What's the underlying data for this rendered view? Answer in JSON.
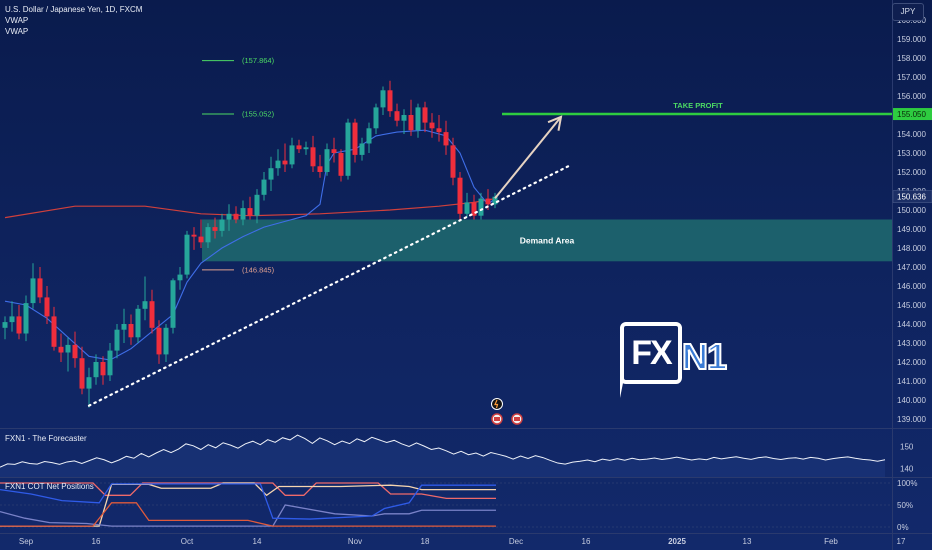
{
  "header": {
    "symbol_title": "U.S. Dollar / Japanese Yen, 1D, FXCM",
    "indicators": [
      "VWAP",
      "VWAP"
    ],
    "currency_button": "JPY"
  },
  "logo": {
    "left": "FX",
    "right": "N1"
  },
  "colors": {
    "bull": "#26a69a",
    "bear": "#ef2e3c",
    "take_profit": "#2ecc40",
    "demand_zone": "#1f6b6e",
    "trendline": "#ffffff",
    "arrow": "#e6d3c2",
    "vwap_blue": "#3f6ee8",
    "vwap_red": "#d0403c"
  },
  "chart_data": [
    {
      "type": "candlestick",
      "title": "U.S. Dollar / Japanese Yen, 1D, FXCM",
      "y_unit": "JPY",
      "ylim": [
        138.8,
        160.8
      ],
      "y_ticks": [
        "139.000",
        "140.000",
        "141.000",
        "142.000",
        "143.000",
        "144.000",
        "145.000",
        "146.000",
        "147.000",
        "148.000",
        "149.000",
        "150.000",
        "151.000",
        "152.000",
        "153.000",
        "154.000",
        "155.000",
        "156.000",
        "157.000",
        "158.000",
        "159.000",
        "160.000"
      ],
      "x_labels": [
        "Sep",
        "16",
        "Oct",
        "14",
        "Nov",
        "18",
        "Dec",
        "16",
        "2025",
        "13",
        "Feb",
        "17"
      ],
      "x_label_day_index": [
        3,
        13,
        26,
        36,
        50,
        60,
        73,
        83,
        96,
        106,
        118,
        128
      ],
      "candles": [
        [
          143.8,
          144.4,
          143.2,
          144.1
        ],
        [
          144.1,
          145.2,
          143.6,
          144.4
        ],
        [
          144.4,
          145.0,
          143.2,
          143.5
        ],
        [
          143.5,
          145.5,
          143.1,
          145.1
        ],
        [
          145.1,
          147.2,
          144.8,
          146.4
        ],
        [
          146.4,
          147.0,
          145.1,
          145.4
        ],
        [
          145.4,
          146.0,
          144.0,
          144.4
        ],
        [
          144.4,
          144.9,
          142.6,
          142.8
        ],
        [
          142.8,
          143.5,
          142.0,
          142.5
        ],
        [
          142.5,
          143.3,
          141.5,
          142.9
        ],
        [
          142.9,
          143.6,
          141.7,
          142.2
        ],
        [
          142.2,
          142.8,
          140.3,
          140.6
        ],
        [
          140.6,
          141.7,
          139.6,
          141.2
        ],
        [
          141.2,
          142.4,
          140.8,
          142.0
        ],
        [
          142.0,
          142.3,
          140.8,
          141.3
        ],
        [
          141.3,
          143.0,
          141.0,
          142.6
        ],
        [
          142.6,
          144.0,
          142.2,
          143.7
        ],
        [
          143.7,
          144.8,
          143.0,
          144.0
        ],
        [
          144.0,
          144.5,
          142.9,
          143.3
        ],
        [
          143.3,
          145.0,
          143.0,
          144.8
        ],
        [
          144.8,
          146.5,
          144.2,
          145.2
        ],
        [
          145.2,
          145.8,
          143.5,
          143.8
        ],
        [
          143.8,
          144.2,
          141.9,
          142.4
        ],
        [
          142.4,
          144.0,
          142.0,
          143.8
        ],
        [
          143.8,
          146.4,
          143.5,
          146.3
        ],
        [
          146.3,
          147.0,
          145.8,
          146.6
        ],
        [
          146.6,
          148.9,
          146.4,
          148.7
        ],
        [
          148.7,
          149.1,
          147.9,
          148.6
        ],
        [
          148.6,
          149.5,
          148.0,
          148.3
        ],
        [
          148.3,
          149.3,
          148.0,
          149.1
        ],
        [
          149.1,
          149.6,
          148.5,
          148.9
        ],
        [
          148.9,
          149.8,
          148.6,
          149.5
        ],
        [
          149.5,
          150.3,
          148.9,
          149.8
        ],
        [
          149.8,
          150.2,
          149.3,
          149.5
        ],
        [
          149.5,
          150.5,
          149.2,
          150.1
        ],
        [
          150.1,
          150.7,
          149.5,
          149.7
        ],
        [
          149.7,
          151.1,
          149.3,
          150.8
        ],
        [
          150.8,
          152.0,
          150.5,
          151.6
        ],
        [
          151.6,
          152.8,
          151.0,
          152.2
        ],
        [
          152.2,
          153.2,
          151.8,
          152.6
        ],
        [
          152.6,
          153.5,
          152.0,
          152.4
        ],
        [
          152.4,
          153.8,
          152.2,
          153.4
        ],
        [
          153.4,
          153.7,
          153.0,
          153.2
        ],
        [
          153.2,
          153.6,
          152.9,
          153.3
        ],
        [
          153.3,
          153.9,
          152.0,
          152.3
        ],
        [
          152.3,
          152.9,
          151.7,
          152.0
        ],
        [
          152.0,
          153.5,
          151.8,
          153.2
        ],
        [
          153.2,
          153.8,
          152.5,
          153.0
        ],
        [
          153.0,
          153.2,
          151.5,
          151.8
        ],
        [
          151.8,
          154.8,
          151.6,
          154.6
        ],
        [
          154.6,
          154.8,
          152.5,
          152.9
        ],
        [
          152.9,
          153.8,
          152.6,
          153.5
        ],
        [
          153.5,
          154.6,
          153.0,
          154.3
        ],
        [
          154.3,
          155.6,
          154.0,
          155.4
        ],
        [
          155.4,
          156.5,
          155.0,
          156.3
        ],
        [
          156.3,
          156.8,
          154.9,
          155.2
        ],
        [
          155.2,
          155.6,
          154.4,
          154.7
        ],
        [
          154.7,
          155.3,
          154.0,
          155.0
        ],
        [
          155.0,
          155.8,
          153.9,
          154.2
        ],
        [
          154.2,
          155.6,
          153.8,
          155.4
        ],
        [
          155.4,
          155.7,
          154.1,
          154.6
        ],
        [
          154.6,
          155.1,
          153.8,
          154.3
        ],
        [
          154.3,
          155.0,
          153.6,
          154.1
        ],
        [
          154.1,
          154.7,
          152.9,
          153.4
        ],
        [
          153.4,
          153.8,
          151.3,
          151.7
        ],
        [
          151.7,
          152.0,
          149.5,
          149.8
        ],
        [
          149.8,
          150.9,
          149.6,
          150.4
        ],
        [
          150.4,
          150.8,
          149.5,
          149.7
        ],
        [
          149.7,
          150.9,
          149.5,
          150.6
        ],
        [
          150.6,
          151.1,
          150.0,
          150.3
        ],
        [
          150.3,
          150.9,
          150.1,
          150.7
        ]
      ],
      "vwap_blue": [
        [
          0,
          145.2
        ],
        [
          3,
          145.0
        ],
        [
          6,
          144.3
        ],
        [
          9,
          143.3
        ],
        [
          12,
          142.3
        ],
        [
          15,
          142.1
        ],
        [
          18,
          142.7
        ],
        [
          21,
          143.6
        ],
        [
          24,
          144.5
        ],
        [
          26,
          146.2
        ],
        [
          28,
          147.2
        ],
        [
          31,
          148.0
        ],
        [
          34,
          148.6
        ],
        [
          37,
          149.1
        ],
        [
          40,
          149.4
        ],
        [
          43,
          149.7
        ],
        [
          45,
          150.3
        ],
        [
          46,
          152.4
        ],
        [
          47,
          153.0
        ],
        [
          50,
          153.2
        ],
        [
          53,
          153.9
        ],
        [
          56,
          154.1
        ],
        [
          60,
          154.2
        ],
        [
          63,
          153.9
        ],
        [
          65,
          153.0
        ],
        [
          67,
          151.2
        ],
        [
          69,
          150.3
        ],
        [
          70,
          150.6
        ]
      ],
      "vwap_red": [
        [
          0,
          149.6
        ],
        [
          10,
          150.2
        ],
        [
          20,
          150.2
        ],
        [
          28,
          149.8
        ],
        [
          35,
          149.7
        ],
        [
          45,
          149.8
        ],
        [
          55,
          150.0
        ],
        [
          62,
          150.2
        ],
        [
          67,
          150.4
        ],
        [
          70,
          150.6
        ]
      ],
      "fib_levels": [
        {
          "label": "(157.864)",
          "price": 157.86,
          "color": "#4cd964"
        },
        {
          "label": "(155.052)",
          "price": 155.05,
          "color": "#4cd964"
        },
        {
          "label": "(146.845)",
          "price": 146.85,
          "color": "#e0a090"
        }
      ],
      "take_profit": {
        "label": "TAKE PROFIT",
        "price": 155.05,
        "badge": "155.050"
      },
      "demand_area": {
        "label": "Demand Area",
        "top": 149.5,
        "bottom": 147.3
      },
      "last_price": {
        "badge": "150.636",
        "price": 150.6
      },
      "trendline": {
        "from": [
          12,
          139.7
        ],
        "to": [
          81,
          152.4
        ]
      },
      "arrow": {
        "from": [
          68,
          150.3
        ],
        "to": [
          74,
          154.9
        ]
      }
    },
    {
      "type": "line",
      "title": "FXN1 - The Forecaster",
      "y_ticks": [
        "150",
        "140"
      ],
      "ylim": [
        136,
        158
      ],
      "series": [
        {
          "values": [
            140.5,
            142.0,
            141.8,
            143.0,
            142.2,
            141.9,
            143.1,
            142.6,
            141.8,
            142.9,
            143.4,
            142.2,
            143.5,
            144.8,
            143.9,
            142.5,
            143.8,
            145.5,
            144.6,
            146.8,
            145.2,
            147.0,
            148.6,
            147.2,
            148.8,
            151.2,
            150.3,
            148.6,
            150.8,
            149.4,
            151.7,
            150.6,
            149.2,
            151.2,
            152.4,
            150.8,
            153.1,
            151.9,
            154.0,
            153.0,
            155.2,
            153.6,
            151.4,
            153.9,
            152.6,
            150.8,
            152.5,
            151.3,
            153.5,
            152.2,
            154.2,
            153.0,
            151.8,
            152.8,
            151.2,
            150.0,
            151.6,
            150.2,
            148.6,
            149.3,
            148.0,
            146.5,
            147.8,
            146.2,
            147.0,
            145.6,
            147.2,
            146.4,
            145.5,
            144.2,
            145.6,
            144.5,
            145.8,
            144.9,
            143.6,
            142.4,
            141.9,
            142.8,
            143.2,
            143.8,
            143.0,
            144.2,
            143.6,
            144.4,
            143.7,
            144.6,
            143.9,
            144.2,
            144.7,
            144.0,
            144.5,
            145.1,
            144.4,
            143.8,
            144.3,
            143.9,
            145.0,
            144.3,
            144.8,
            145.3,
            144.6,
            144.1,
            144.9,
            145.2,
            144.5,
            144.0,
            144.6,
            144.8,
            144.2,
            145.0,
            144.6,
            143.8,
            144.4,
            144.9,
            145.2,
            144.6,
            144.1,
            143.8,
            143.2,
            143.9
          ]
        }
      ]
    },
    {
      "type": "line",
      "title": "FXN1 COT Net Positions",
      "ylim": [
        0,
        100
      ],
      "y_ticks": [
        "100%",
        "50%",
        "0%"
      ],
      "series": [
        {
          "color": "#ef6a6a",
          "values": [
            [
              0,
              100
            ],
            [
              15,
              100
            ],
            [
              17,
              72
            ],
            [
              21,
              72
            ],
            [
              23,
              100
            ],
            [
              40,
              100
            ],
            [
              44,
              100
            ],
            [
              46,
              72
            ],
            [
              49,
              72
            ],
            [
              51,
              100
            ],
            [
              61,
              100
            ],
            [
              63,
              75
            ],
            [
              66,
              75
            ],
            [
              68,
              75
            ],
            [
              72,
              65
            ],
            [
              80,
              65
            ]
          ]
        },
        {
          "color": "#f5d5b0",
          "values": [
            [
              0,
              2
            ],
            [
              16,
              2
            ],
            [
              18,
              97
            ],
            [
              24,
              97
            ],
            [
              26,
              88
            ],
            [
              34,
              88
            ],
            [
              36,
              100
            ],
            [
              41,
              100
            ],
            [
              43,
              72
            ],
            [
              45,
              92
            ],
            [
              55,
              92
            ],
            [
              60,
              94
            ],
            [
              63,
              95
            ],
            [
              66,
              92
            ],
            [
              68,
              85
            ],
            [
              80,
              85
            ]
          ]
        },
        {
          "color": "#7a82c8",
          "values": [
            [
              0,
              35
            ],
            [
              4,
              20
            ],
            [
              8,
              10
            ],
            [
              14,
              8
            ],
            [
              18,
              2
            ],
            [
              44,
              2
            ],
            [
              46,
              50
            ],
            [
              54,
              30
            ],
            [
              60,
              25
            ],
            [
              62,
              30
            ],
            [
              66,
              30
            ],
            [
              68,
              38
            ],
            [
              80,
              38
            ]
          ]
        },
        {
          "color": "#2f5be8",
          "values": [
            [
              0,
              85
            ],
            [
              5,
              75
            ],
            [
              10,
              60
            ],
            [
              16,
              55
            ],
            [
              18,
              98
            ],
            [
              42,
              98
            ],
            [
              44,
              20
            ],
            [
              50,
              18
            ],
            [
              60,
              25
            ],
            [
              62,
              42
            ],
            [
              66,
              55
            ],
            [
              68,
              95
            ],
            [
              80,
              95
            ]
          ]
        },
        {
          "color": "#e05a3c",
          "values": [
            [
              0,
              2
            ],
            [
              15,
              2
            ],
            [
              18,
              55
            ],
            [
              22,
              55
            ],
            [
              24,
              15
            ],
            [
              40,
              15
            ],
            [
              44,
              2
            ],
            [
              52,
              2
            ],
            [
              60,
              2
            ],
            [
              62,
              2
            ],
            [
              66,
              2
            ],
            [
              68,
              2
            ],
            [
              80,
              2
            ]
          ]
        }
      ]
    }
  ]
}
